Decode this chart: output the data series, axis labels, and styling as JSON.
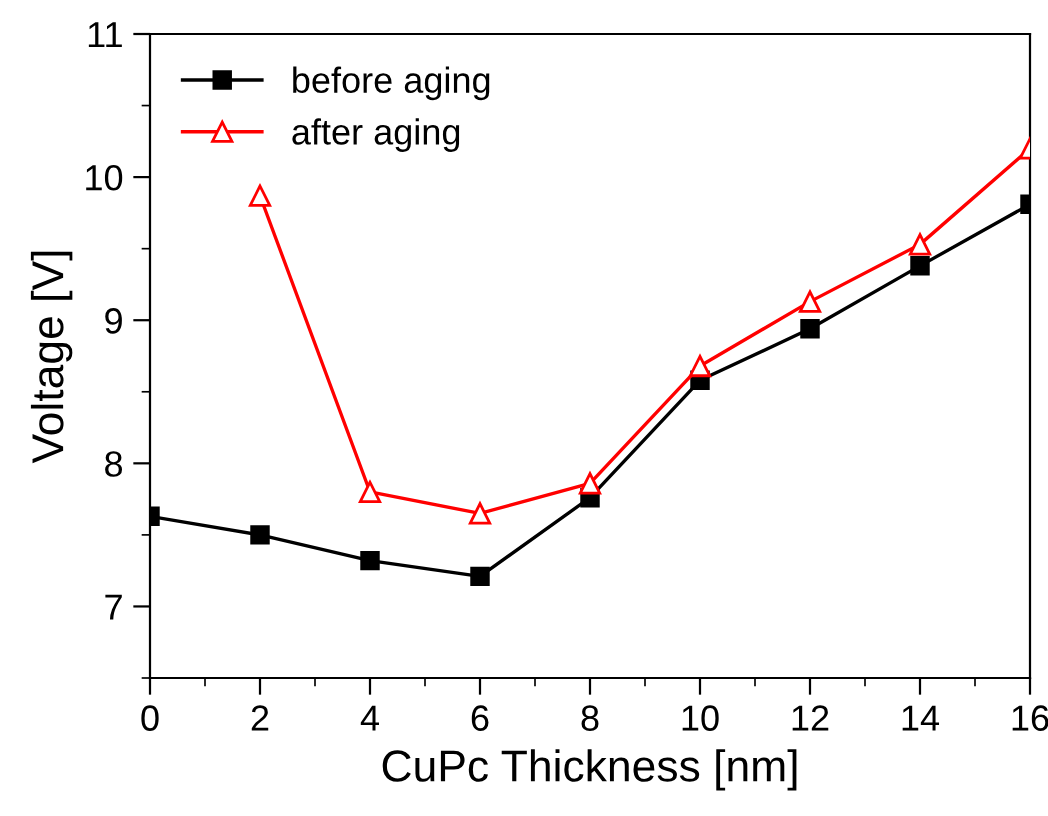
{
  "chart_data": {
    "type": "line",
    "xlabel": "CuPc Thickness [nm]",
    "ylabel": "Voltage [V]",
    "x": [
      0,
      2,
      4,
      6,
      8,
      10,
      12,
      14,
      16
    ],
    "series": [
      {
        "name": "before aging",
        "color": "#000000",
        "marker": "square",
        "values": [
          7.63,
          7.5,
          7.32,
          7.21,
          7.76,
          8.58,
          8.94,
          9.38,
          9.81
        ]
      },
      {
        "name": "after aging",
        "color": "#ff0000",
        "marker": "triangle",
        "values": [
          null,
          9.87,
          7.8,
          7.65,
          7.86,
          8.68,
          9.13,
          9.53,
          10.2
        ]
      }
    ],
    "xlim": [
      0,
      16
    ],
    "xticks": [
      0,
      2,
      4,
      6,
      8,
      10,
      12,
      14,
      16
    ],
    "ylim": [
      6.5,
      11
    ],
    "yticks": [
      7,
      8,
      9,
      10,
      11
    ],
    "grid": false,
    "legend": "top left"
  }
}
